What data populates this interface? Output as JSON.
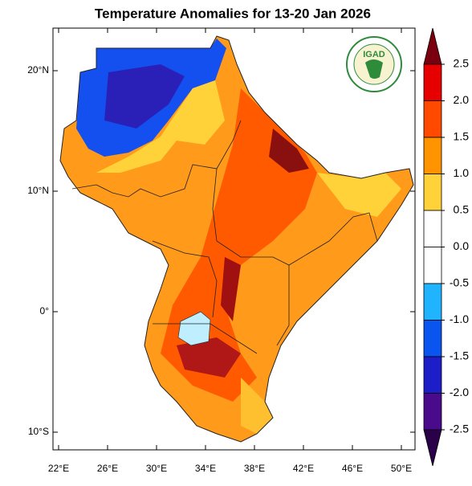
{
  "title": "Temperature Anomalies for 13-20 Jan 2026",
  "logo": {
    "text": "IGAD"
  },
  "map": {
    "lat_ticks": [
      {
        "value": 20,
        "label": "20°N"
      },
      {
        "value": 10,
        "label": "10°N"
      },
      {
        "value": 0,
        "label": "0°"
      },
      {
        "value": -10,
        "label": "10°S"
      }
    ],
    "lon_ticks": [
      {
        "value": 22,
        "label": "22°E"
      },
      {
        "value": 26,
        "label": "26°E"
      },
      {
        "value": 30,
        "label": "30°E"
      },
      {
        "value": 34,
        "label": "34°E"
      },
      {
        "value": 38,
        "label": "38°E"
      },
      {
        "value": 42,
        "label": "42°E"
      },
      {
        "value": 46,
        "label": "46°E"
      },
      {
        "value": 50,
        "label": "50°E"
      }
    ]
  },
  "colorbar": {
    "levels": [
      {
        "value": 2.5,
        "label": "2.5"
      },
      {
        "value": 2,
        "label": "2.0"
      },
      {
        "value": 1.5,
        "label": "1.5"
      },
      {
        "value": 1,
        "label": "1.0"
      },
      {
        "value": 0.5,
        "label": "0.5"
      },
      {
        "value": 0,
        "label": "0.0"
      },
      {
        "value": -0.5,
        "label": "-0.5"
      },
      {
        "value": -1,
        "label": "-1.0"
      },
      {
        "value": -1.5,
        "label": "-1.5"
      },
      {
        "value": -2,
        "label": "-2.0"
      },
      {
        "value": -2.5,
        "label": "-2.5"
      }
    ],
    "colors": [
      "#7a0010",
      "#e60000",
      "#ff4a00",
      "#ff9400",
      "#ffd23a",
      "#ffffff",
      "#ffffff",
      "#20b4ff",
      "#0a55f0",
      "#1e1ec8",
      "#4a0a8c",
      "#2a0048"
    ]
  }
}
